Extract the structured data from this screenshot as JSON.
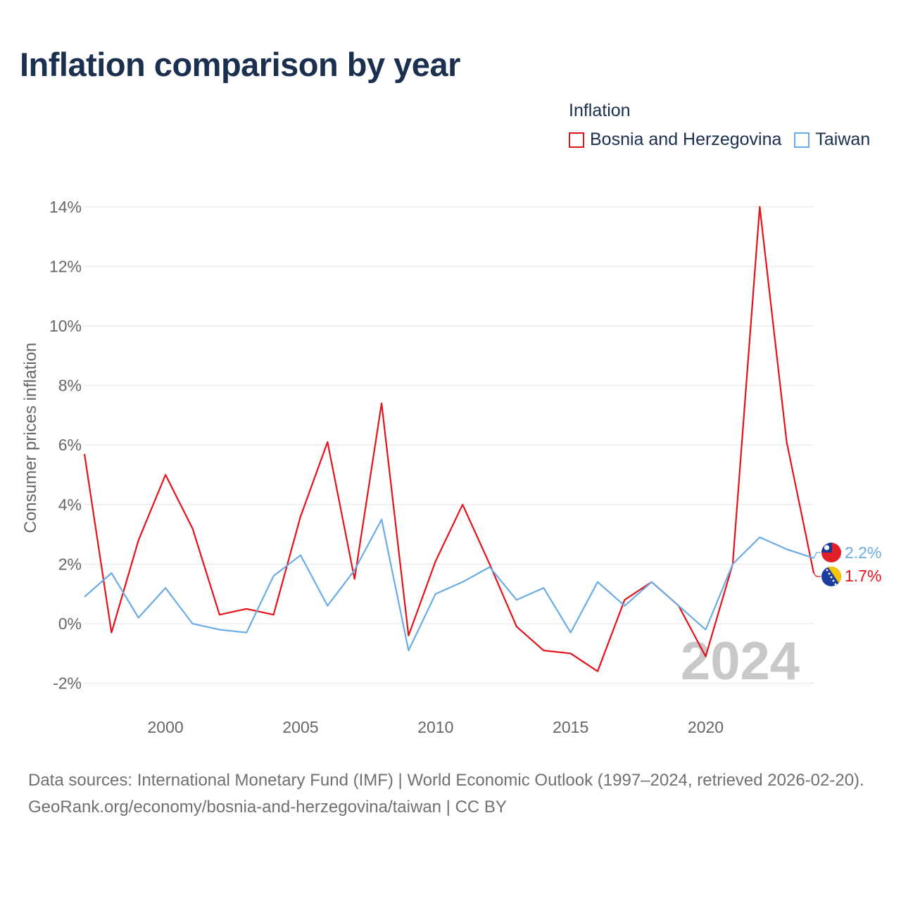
{
  "title": "Inflation comparison by year",
  "legend": {
    "title": "Inflation",
    "items": [
      {
        "label": "Bosnia and Herzegovina",
        "color": "#e3121b"
      },
      {
        "label": "Taiwan",
        "color": "#6aace6"
      }
    ]
  },
  "chart_data": {
    "type": "line",
    "title": "Inflation comparison by year",
    "xlabel": "",
    "ylabel": "Consumer prices inflation",
    "x": [
      1997,
      1998,
      1999,
      2000,
      2001,
      2002,
      2003,
      2004,
      2005,
      2006,
      2007,
      2008,
      2009,
      2010,
      2011,
      2012,
      2013,
      2014,
      2015,
      2016,
      2017,
      2018,
      2019,
      2020,
      2021,
      2022,
      2023,
      2024
    ],
    "xlim": [
      1997,
      2024
    ],
    "ylim": [
      -3,
      14
    ],
    "x_ticks": [
      2000,
      2005,
      2010,
      2015,
      2020
    ],
    "x_tick_labels": [
      "2000",
      "2005",
      "2010",
      "2015",
      "2020"
    ],
    "y_ticks": [
      -2,
      0,
      2,
      4,
      6,
      8,
      10,
      12,
      14
    ],
    "y_tick_labels": [
      "-2%",
      "0%",
      "2%",
      "4%",
      "6%",
      "8%",
      "10%",
      "12%",
      "14%"
    ],
    "grid": true,
    "year_watermark": "2024",
    "series": [
      {
        "name": "Bosnia and Herzegovina",
        "color": "#e3121b",
        "end_label": "1.7%",
        "values": [
          5.7,
          -0.3,
          2.8,
          5.0,
          3.2,
          0.3,
          0.5,
          0.3,
          3.6,
          6.1,
          1.5,
          7.4,
          -0.4,
          2.1,
          4.0,
          2.0,
          -0.1,
          -0.9,
          -1.0,
          -1.6,
          0.8,
          1.4,
          0.6,
          -1.1,
          2.0,
          14.0,
          6.1,
          1.7
        ]
      },
      {
        "name": "Taiwan",
        "color": "#6aace6",
        "end_label": "2.2%",
        "values": [
          0.9,
          1.7,
          0.2,
          1.2,
          0.0,
          -0.2,
          -0.3,
          1.6,
          2.3,
          0.6,
          1.8,
          3.5,
          -0.9,
          1.0,
          1.4,
          1.9,
          0.8,
          1.2,
          -0.3,
          1.4,
          0.6,
          1.4,
          0.6,
          -0.2,
          2.0,
          2.9,
          2.5,
          2.2
        ]
      }
    ]
  },
  "footer": {
    "sources": "Data sources: International Monetary Fund (IMF) | World Economic Outlook (1997–2024, retrieved 2026-02-20).",
    "url": "GeoRank.org/economy/bosnia-and-herzegovina/taiwan | CC BY"
  }
}
